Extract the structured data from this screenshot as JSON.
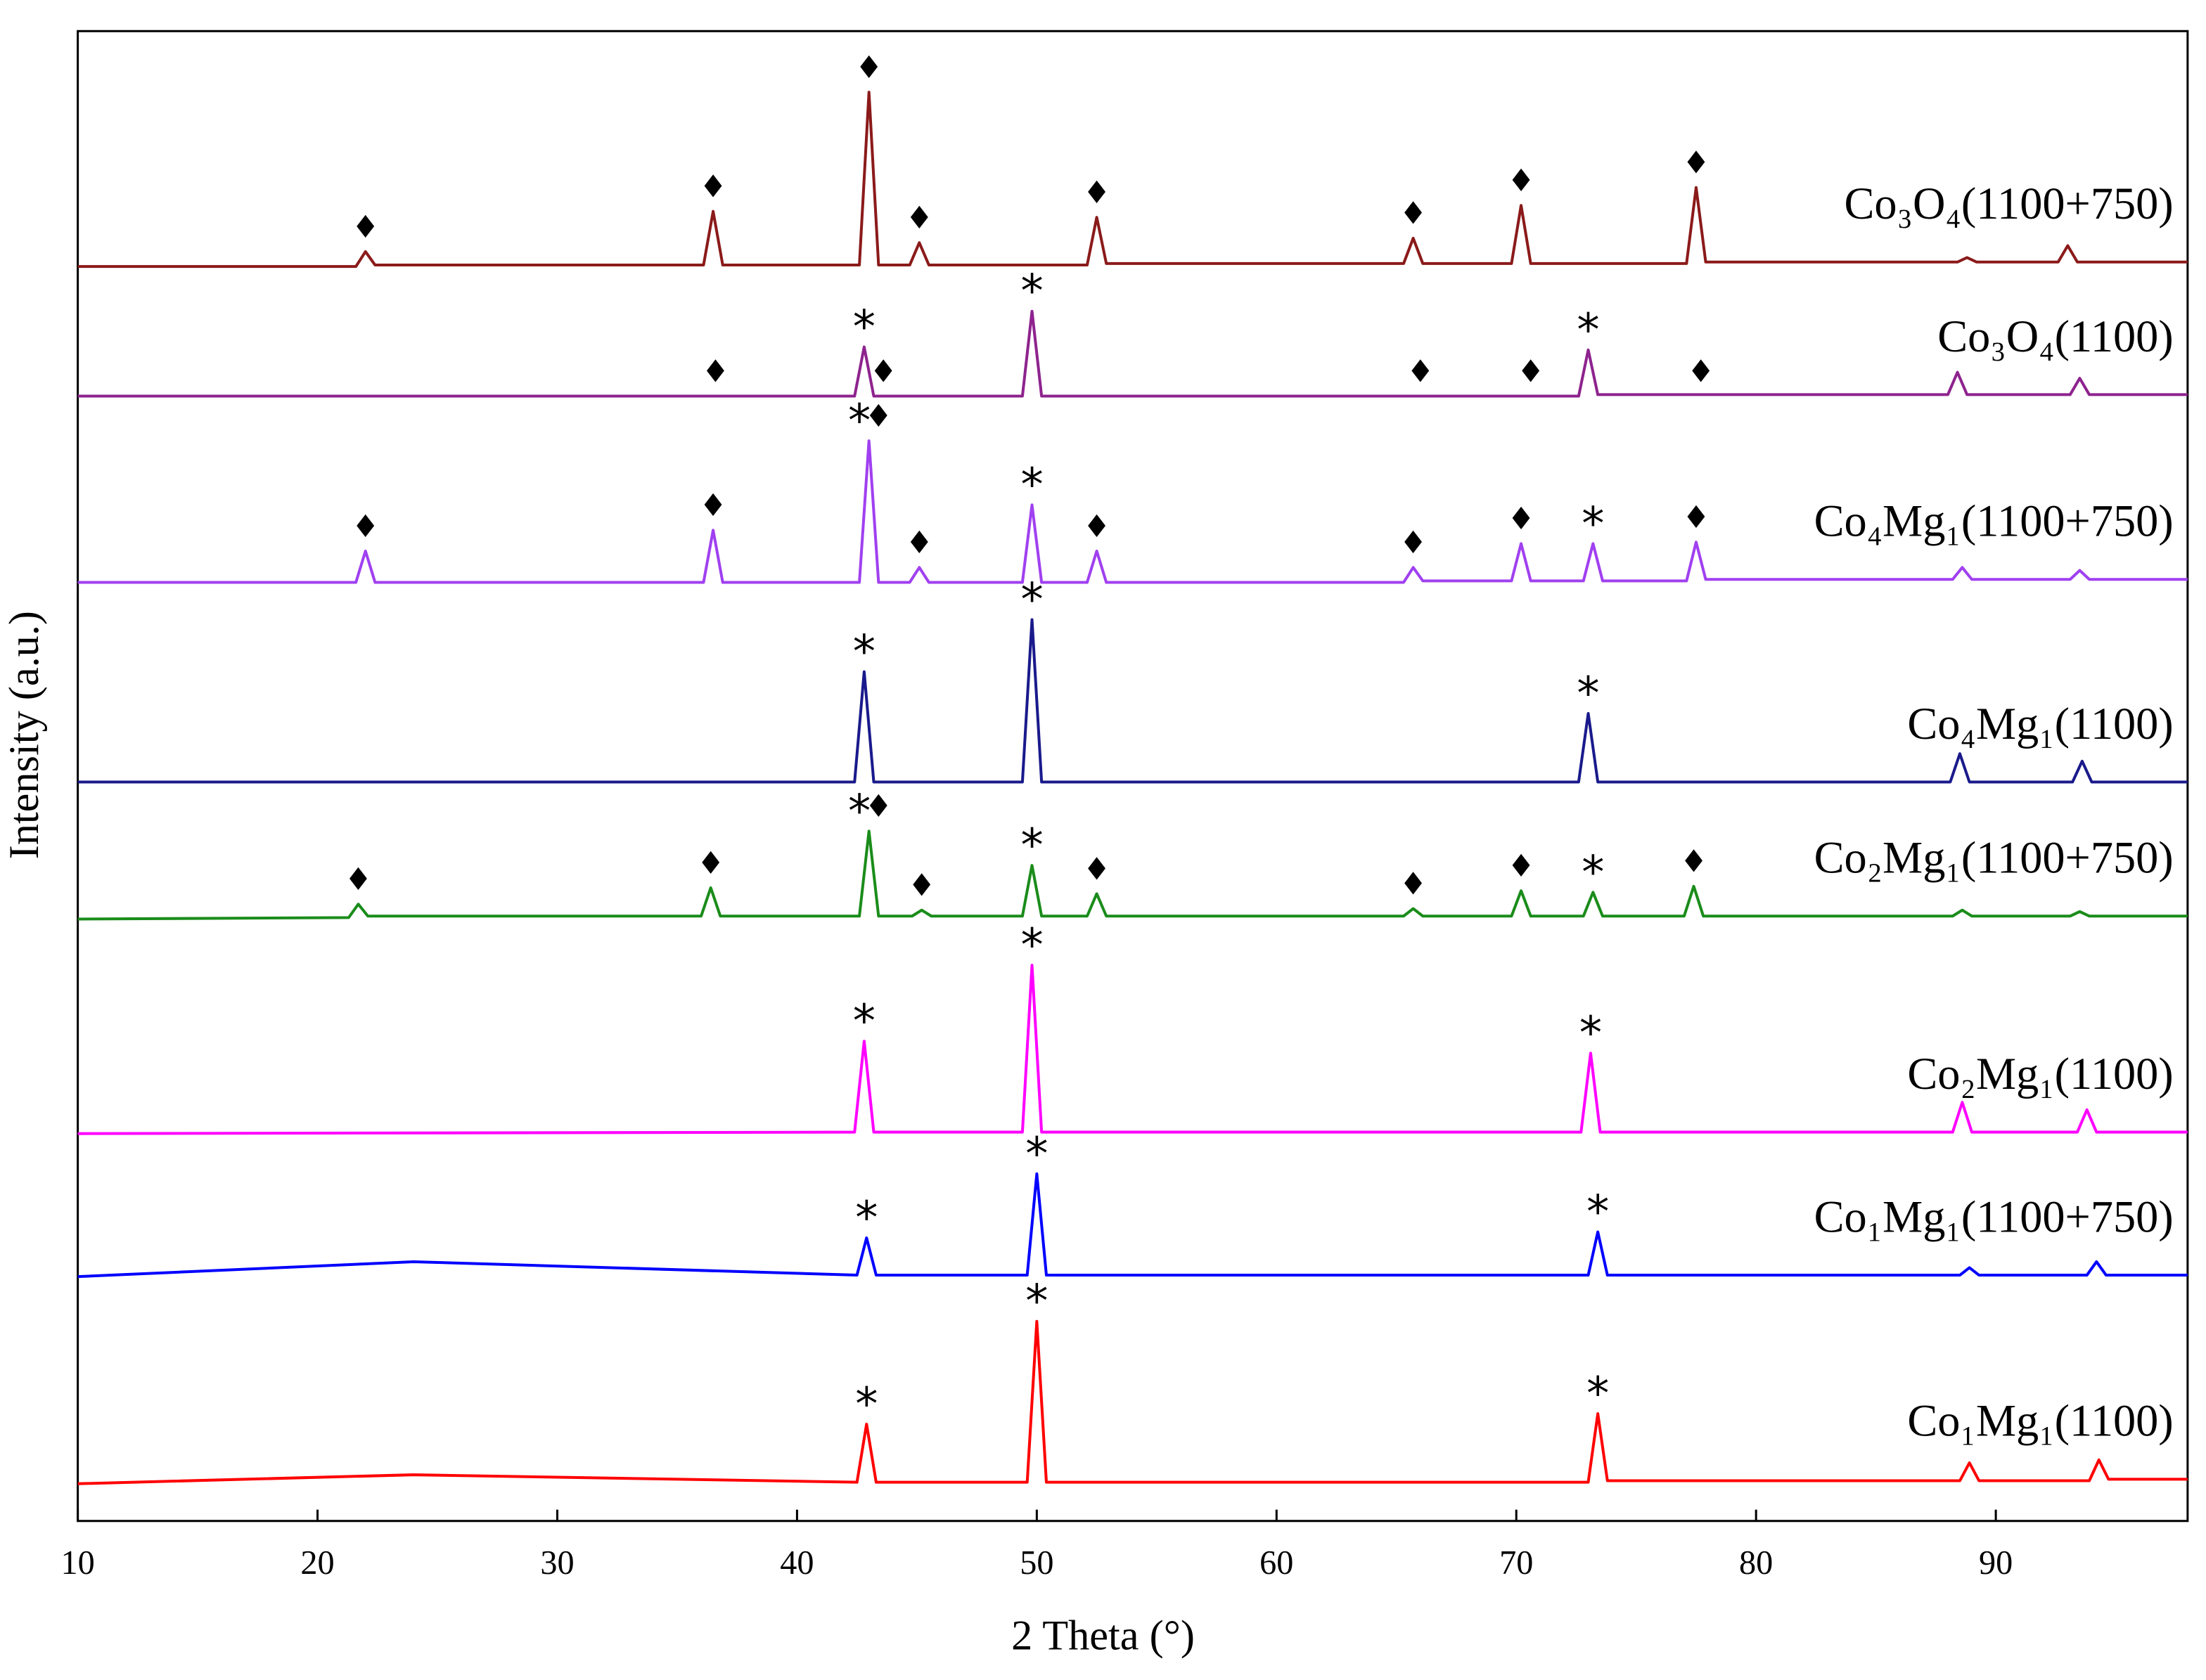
{
  "chart_data": {
    "type": "line",
    "x_label": "2 Theta (°)",
    "y_label": "Intensity (a.u.)",
    "xlim": [
      10,
      98
    ],
    "ylim": [
      0,
      100
    ],
    "xticks": [
      10,
      20,
      30,
      40,
      50,
      60,
      70,
      80,
      90
    ],
    "series": [
      {
        "name": "Co₃O₄(1100+750)",
        "color": "#8b1a1a",
        "x": [
          10,
          21.6,
          22.0,
          22.4,
          36.1,
          36.5,
          36.9,
          42.6,
          43.0,
          43.4,
          44.7,
          45.1,
          45.5,
          52.1,
          52.5,
          52.9,
          65.3,
          65.7,
          66.1,
          69.8,
          70.2,
          70.6,
          77.1,
          77.5,
          77.9,
          88.4,
          88.8,
          89.2,
          92.6,
          93.0,
          93.4,
          98
        ],
        "values": [
          84.2,
          84.2,
          85.2,
          84.3,
          84.3,
          87.9,
          84.3,
          84.3,
          95.9,
          84.3,
          84.3,
          85.8,
          84.3,
          84.3,
          87.5,
          84.4,
          84.4,
          86.1,
          84.4,
          84.4,
          88.3,
          84.4,
          84.4,
          89.5,
          84.5,
          84.5,
          84.8,
          84.5,
          84.5,
          85.6,
          84.5,
          84.5
        ],
        "markers": [
          {
            "x": 22.0,
            "label": "♦"
          },
          {
            "x": 36.5,
            "label": "♦"
          },
          {
            "x": 43.0,
            "label": "♦"
          },
          {
            "x": 45.1,
            "label": "♦"
          },
          {
            "x": 52.5,
            "label": "♦"
          },
          {
            "x": 65.7,
            "label": "♦"
          },
          {
            "x": 70.2,
            "label": "♦"
          },
          {
            "x": 77.5,
            "label": "♦"
          }
        ]
      },
      {
        "name": "Co₃O₄(1100)",
        "color": "#8e238e",
        "x": [
          10,
          42.4,
          42.8,
          43.2,
          49.4,
          49.8,
          50.2,
          72.6,
          73.0,
          73.4,
          88.0,
          88.4,
          88.8,
          93.1,
          93.5,
          93.9,
          98
        ],
        "values": [
          75.5,
          75.5,
          78.8,
          75.5,
          75.5,
          81.2,
          75.5,
          75.5,
          78.6,
          75.6,
          75.6,
          77.1,
          75.6,
          75.6,
          76.7,
          75.6,
          75.6
        ],
        "markers": [
          {
            "x": 36.6,
            "label": "♦"
          },
          {
            "x": 42.8,
            "label": "*"
          },
          {
            "x": 43.6,
            "label": "♦"
          },
          {
            "x": 49.8,
            "label": "*"
          },
          {
            "x": 66.0,
            "label": "♦"
          },
          {
            "x": 70.6,
            "label": "♦"
          },
          {
            "x": 73.0,
            "label": "*"
          },
          {
            "x": 77.7,
            "label": "♦"
          }
        ]
      },
      {
        "name": "Co₄Mg₁(1100+750)",
        "color": "#a040f0",
        "x": [
          10,
          21.6,
          22.0,
          22.4,
          36.1,
          36.5,
          36.9,
          42.6,
          43.0,
          43.4,
          44.7,
          45.1,
          45.5,
          49.4,
          49.8,
          50.2,
          52.1,
          52.5,
          52.9,
          65.3,
          65.7,
          66.1,
          69.8,
          70.2,
          70.6,
          72.8,
          73.2,
          73.6,
          77.1,
          77.5,
          77.9,
          88.2,
          88.6,
          89.0,
          93.1,
          93.5,
          93.9,
          98
        ],
        "values": [
          63.0,
          63.0,
          65.1,
          63.0,
          63.0,
          66.5,
          63.0,
          63.0,
          72.5,
          63.0,
          63.0,
          64.0,
          63.0,
          63.0,
          68.2,
          63.0,
          63.0,
          65.1,
          63.0,
          63.0,
          64.0,
          63.1,
          63.1,
          65.6,
          63.1,
          63.1,
          65.6,
          63.1,
          63.1,
          65.7,
          63.2,
          63.2,
          64.0,
          63.2,
          63.2,
          63.8,
          63.2,
          63.2
        ],
        "markers": [
          {
            "x": 22.0,
            "label": "♦"
          },
          {
            "x": 36.5,
            "label": "♦"
          },
          {
            "x": 42.6,
            "label": "*"
          },
          {
            "x": 43.4,
            "label": "♦"
          },
          {
            "x": 45.1,
            "label": "♦"
          },
          {
            "x": 49.8,
            "label": "*"
          },
          {
            "x": 52.5,
            "label": "♦"
          },
          {
            "x": 65.7,
            "label": "♦"
          },
          {
            "x": 70.2,
            "label": "♦"
          },
          {
            "x": 73.2,
            "label": "*"
          },
          {
            "x": 77.5,
            "label": "♦"
          }
        ]
      },
      {
        "name": "Co₄Mg₁(1100)",
        "color": "#1a1a8c",
        "x": [
          10,
          42.4,
          42.8,
          43.2,
          49.4,
          49.8,
          50.2,
          72.6,
          73.0,
          73.4,
          88.1,
          88.5,
          88.9,
          93.2,
          93.6,
          94.0,
          98
        ],
        "values": [
          49.6,
          49.6,
          57.0,
          49.6,
          49.6,
          60.5,
          49.6,
          49.6,
          54.2,
          49.6,
          49.6,
          51.5,
          49.6,
          49.6,
          51.0,
          49.6,
          49.6
        ],
        "markers": [
          {
            "x": 42.8,
            "label": "*"
          },
          {
            "x": 49.8,
            "label": "*"
          },
          {
            "x": 73.0,
            "label": "*"
          }
        ]
      },
      {
        "name": "Co₂Mg₁(1100+750)",
        "color": "#1a8c1a",
        "x": [
          10,
          21.3,
          21.7,
          22.1,
          36.0,
          36.4,
          36.8,
          42.6,
          43.0,
          43.4,
          44.8,
          45.2,
          45.6,
          49.4,
          49.8,
          50.2,
          52.1,
          52.5,
          52.9,
          65.3,
          65.7,
          66.1,
          69.8,
          70.2,
          70.6,
          72.8,
          73.2,
          73.6,
          77.0,
          77.4,
          77.8,
          88.2,
          88.6,
          89.0,
          93.1,
          93.5,
          93.9,
          98
        ],
        "values": [
          40.4,
          40.5,
          41.4,
          40.6,
          40.6,
          42.5,
          40.6,
          40.6,
          46.3,
          40.6,
          40.6,
          41.0,
          40.6,
          40.6,
          44.0,
          40.6,
          40.6,
          42.1,
          40.6,
          40.6,
          41.1,
          40.6,
          40.6,
          42.3,
          40.6,
          40.6,
          42.2,
          40.6,
          40.6,
          42.6,
          40.6,
          40.6,
          41.0,
          40.6,
          40.6,
          40.9,
          40.6,
          40.6
        ],
        "markers": [
          {
            "x": 21.7,
            "label": "♦"
          },
          {
            "x": 36.4,
            "label": "♦"
          },
          {
            "x": 42.6,
            "label": "*"
          },
          {
            "x": 43.4,
            "label": "♦"
          },
          {
            "x": 45.2,
            "label": "♦"
          },
          {
            "x": 49.8,
            "label": "*"
          },
          {
            "x": 52.5,
            "label": "♦"
          },
          {
            "x": 65.7,
            "label": "♦"
          },
          {
            "x": 70.2,
            "label": "♦"
          },
          {
            "x": 73.2,
            "label": "*"
          },
          {
            "x": 77.4,
            "label": "♦"
          }
        ]
      },
      {
        "name": "Co₂Mg₁(1100)",
        "color": "#ff00ff",
        "x": [
          10,
          42.4,
          42.8,
          43.2,
          49.4,
          49.8,
          50.2,
          72.7,
          73.1,
          73.5,
          88.2,
          88.6,
          89.0,
          93.4,
          93.8,
          94.2,
          98
        ],
        "values": [
          26.0,
          26.1,
          32.2,
          26.1,
          26.1,
          37.3,
          26.1,
          26.1,
          31.4,
          26.1,
          26.1,
          28.1,
          26.1,
          26.1,
          27.6,
          26.1,
          26.1
        ],
        "markers": [
          {
            "x": 42.8,
            "label": "*"
          },
          {
            "x": 49.8,
            "label": "*"
          },
          {
            "x": 73.1,
            "label": "*"
          }
        ]
      },
      {
        "name": "Co₁Mg₁(1100+750)",
        "color": "#0000ff",
        "x": [
          10,
          24,
          42.5,
          42.9,
          43.3,
          49.6,
          50.0,
          50.4,
          73.0,
          73.4,
          73.8,
          88.5,
          88.9,
          89.3,
          93.8,
          94.2,
          94.6,
          98
        ],
        "values": [
          16.4,
          17.4,
          16.5,
          19.0,
          16.5,
          16.5,
          23.3,
          16.5,
          16.5,
          19.4,
          16.5,
          16.5,
          17.0,
          16.5,
          16.5,
          17.4,
          16.5,
          16.5
        ],
        "markers": [
          {
            "x": 42.9,
            "label": "*"
          },
          {
            "x": 50.0,
            "label": "*"
          },
          {
            "x": 73.4,
            "label": "*"
          }
        ]
      },
      {
        "name": "Co₁Mg₁(1100)",
        "color": "#ff0000",
        "x": [
          10,
          24,
          42.5,
          42.9,
          43.3,
          49.6,
          50.0,
          50.4,
          73.0,
          73.4,
          73.8,
          88.5,
          88.9,
          89.3,
          93.9,
          94.3,
          94.7,
          98
        ],
        "values": [
          2.5,
          3.1,
          2.6,
          6.5,
          2.6,
          2.6,
          13.4,
          2.6,
          2.6,
          7.2,
          2.7,
          2.7,
          3.9,
          2.7,
          2.7,
          4.1,
          2.8,
          2.8
        ],
        "markers": [
          {
            "x": 42.9,
            "label": "*"
          },
          {
            "x": 50.0,
            "label": "*"
          },
          {
            "x": 73.4,
            "label": "*"
          }
        ]
      }
    ]
  }
}
